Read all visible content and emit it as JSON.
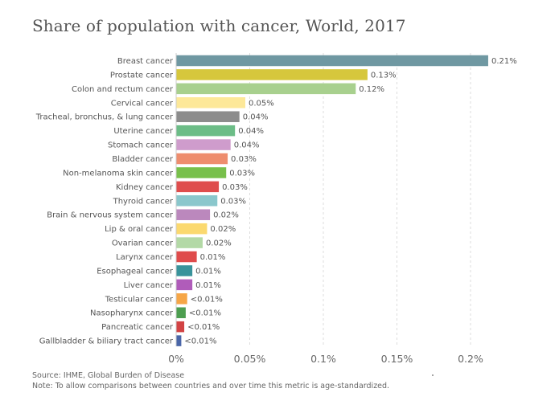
{
  "title": "Share of population with cancer, World, 2017",
  "footer": {
    "source": "Source: IHME, Global Burden of Disease",
    "note": "Note: To allow comparisons between countries and over time this metric is age-standardized."
  },
  "chart_data": {
    "type": "bar",
    "orientation": "horizontal",
    "title": "Share of population with cancer, World, 2017",
    "xlabel": "",
    "ylabel": "",
    "xlim": [
      0,
      0.22
    ],
    "xticks": [
      0,
      0.05,
      0.1,
      0.15,
      0.2
    ],
    "xtick_labels": [
      "0%",
      "0.05%",
      "0.1%",
      "0.15%",
      "0.2%"
    ],
    "grid": "vertical dashed",
    "categories": [
      "Breast cancer",
      "Prostate cancer",
      "Colon and rectum cancer",
      "Cervical cancer",
      "Tracheal, bronchus, & lung cancer",
      "Uterine cancer",
      "Stomach cancer",
      "Bladder cancer",
      "Non-melanoma skin cancer",
      "Kidney cancer",
      "Thyroid cancer",
      "Brain & nervous system cancer",
      "Lip & oral cancer",
      "Ovarian cancer",
      "Larynx cancer",
      "Esophageal cancer",
      "Liver cancer",
      "Testicular cancer",
      "Nasopharynx cancer",
      "Pancreatic cancer",
      "Gallbladder & biliary tract cancer"
    ],
    "values": [
      0.212,
      0.13,
      0.122,
      0.047,
      0.043,
      0.04,
      0.037,
      0.035,
      0.034,
      0.029,
      0.028,
      0.023,
      0.021,
      0.018,
      0.014,
      0.011,
      0.011,
      0.0075,
      0.0065,
      0.0055,
      0.0035
    ],
    "labels": [
      "0.21%",
      "0.13%",
      "0.12%",
      "0.05%",
      "0.04%",
      "0.04%",
      "0.04%",
      "0.03%",
      "0.03%",
      "0.03%",
      "0.03%",
      "0.02%",
      "0.02%",
      "0.02%",
      "0.01%",
      "0.01%",
      "0.01%",
      "<0.01%",
      "<0.01%",
      "<0.01%",
      "<0.01%"
    ],
    "colors": [
      "#6f98a2",
      "#d6c73c",
      "#a8d08e",
      "#fde899",
      "#8c8c8c",
      "#6cbd87",
      "#cf9ccc",
      "#ee8d6e",
      "#78c04b",
      "#df4d4d",
      "#8ac7cc",
      "#bb88bd",
      "#fbd96f",
      "#b3d9a6",
      "#df4b4b",
      "#39939b",
      "#b05cba",
      "#f6a647",
      "#4d9e50",
      "#d24344",
      "#4a66a8"
    ]
  }
}
